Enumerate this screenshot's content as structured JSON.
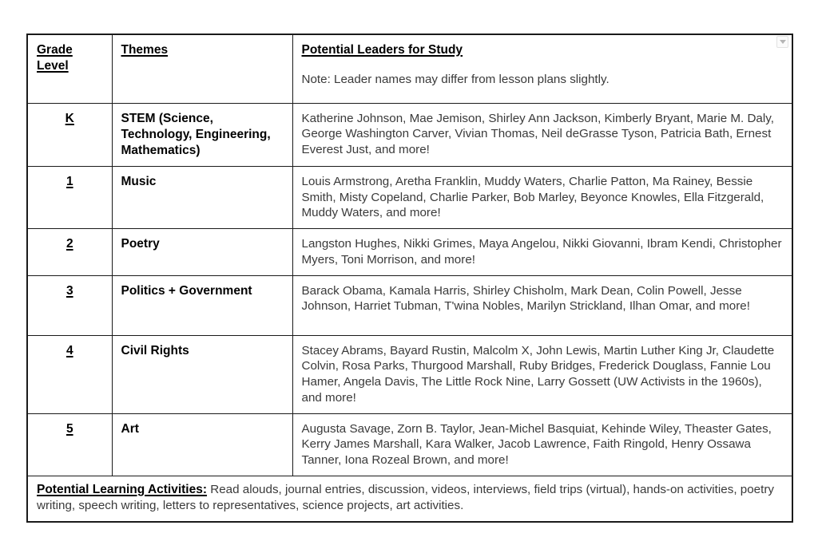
{
  "table": {
    "header": {
      "grade_level": "Grade Level",
      "themes": "Themes",
      "leaders_title": "Potential Leaders for Study",
      "leaders_note": "Note: Leader names may differ from lesson plans slightly."
    },
    "rows": [
      {
        "grade": "K",
        "theme": "STEM (Science, Technology, Engineering, Mathematics)",
        "leaders": "Katherine Johnson, Mae Jemison, Shirley Ann Jackson, Kimberly Bryant, Marie M. Daly, George Washington Carver, Vivian Thomas, Neil deGrasse Tyson, Patricia Bath, Ernest Everest Just, and more!"
      },
      {
        "grade": "1",
        "theme": "Music",
        "leaders": "Louis Armstrong, Aretha Franklin, Muddy Waters, Charlie Patton, Ma Rainey, Bessie Smith, Misty Copeland, Charlie Parker, Bob Marley, Beyonce Knowles, Ella Fitzgerald, Muddy Waters, and more!"
      },
      {
        "grade": "2",
        "theme": "Poetry",
        "leaders": "Langston Hughes, Nikki Grimes, Maya Angelou, Nikki Giovanni, Ibram Kendi, Christopher Myers, Toni Morrison, and more!"
      },
      {
        "grade": "3",
        "theme": "Politics + Government",
        "leaders": "Barack Obama, Kamala Harris, Shirley Chisholm, Mark Dean, Colin Powell, Jesse Johnson, Harriet Tubman, T'wina Nobles, Marilyn Strickland, Ilhan Omar, and more!"
      },
      {
        "grade": "4",
        "theme": "Civil Rights",
        "leaders": "Stacey Abrams, Bayard Rustin, Malcolm X, John Lewis, Martin Luther King Jr, Claudette Colvin, Rosa Parks, Thurgood Marshall, Ruby Bridges, Frederick Douglass, Fannie Lou Hamer, Angela Davis, The Little Rock Nine, Larry Gossett (UW Activists in the 1960s), and more!"
      },
      {
        "grade": "5",
        "theme": "Art",
        "leaders": "Augusta Savage, Zorn B. Taylor, Jean-Michel Basquiat, Kehinde Wiley, Theaster Gates, Kerry James Marshall, Kara Walker, Jacob Lawrence, Faith Ringold, Henry Ossawa Tanner, Iona Rozeal Brown, and more!"
      }
    ],
    "footer": {
      "label": "Potential Learning Activities:",
      "text": "Read alouds, journal entries, discussion, videos, interviews, field trips (virtual), hands-on activities, poetry writing, speech writing, letters to representatives, science projects, art activities."
    }
  },
  "icons": {
    "table_options": "dropdown-arrow"
  },
  "colors": {
    "background": "#ffffff",
    "border": "#1a1a1a",
    "heading_text": "#000000",
    "body_text": "#3a3a3a",
    "icon_border": "#e2e2e2",
    "icon_arrow": "#b5b5b5"
  }
}
